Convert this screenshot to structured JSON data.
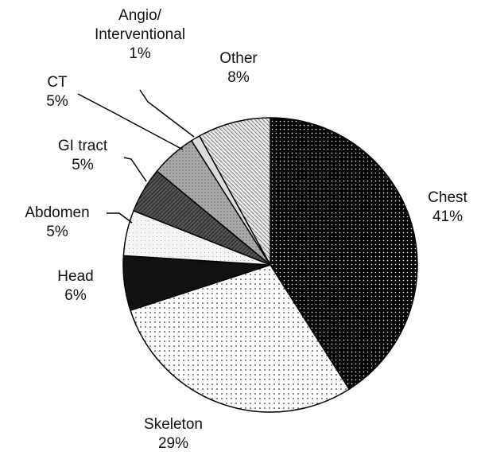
{
  "chart_data": {
    "type": "pie",
    "categories": [
      "Chest",
      "Skeleton",
      "Head",
      "Abdomen",
      "GI tract",
      "CT",
      "Angio/\nInterventional",
      "Other"
    ],
    "values": [
      41,
      29,
      6,
      5,
      5,
      5,
      1,
      8
    ],
    "value_labels": [
      "41%",
      "29%",
      "6%",
      "5%",
      "5%",
      "5%",
      "1%",
      "8%"
    ],
    "colors": [
      "#000000",
      "#ffffff",
      "#111111",
      "#f4f4f4",
      "#555555",
      "#aaaaaa",
      "#dddddd",
      "#eeeeee"
    ]
  }
}
